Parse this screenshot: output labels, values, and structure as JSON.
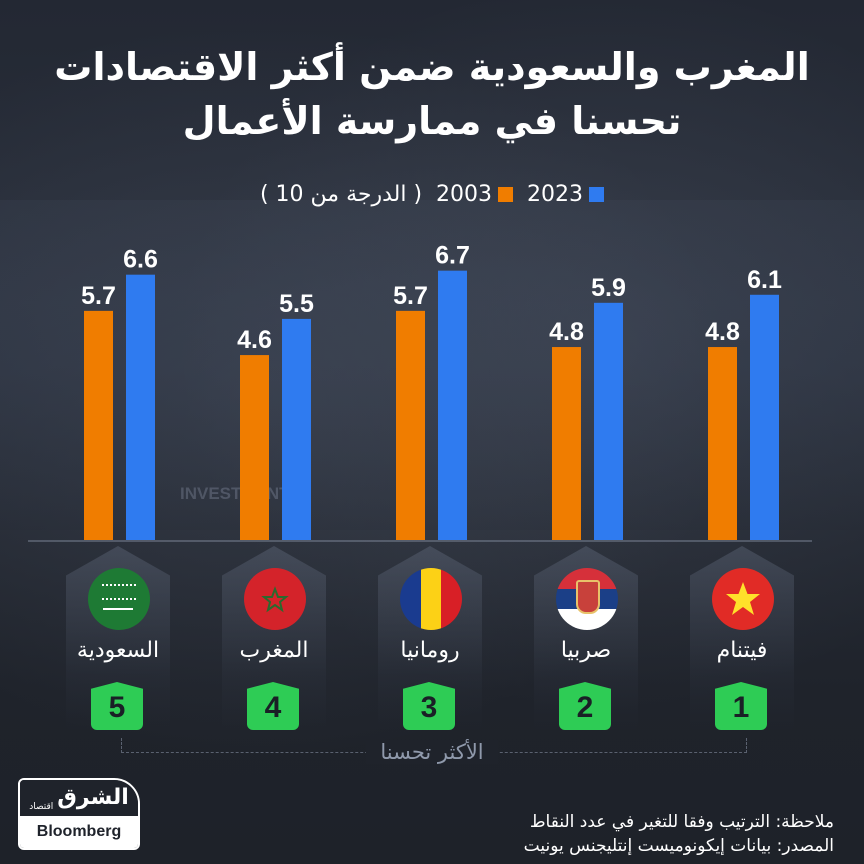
{
  "title": {
    "line1": "المغرب والسعودية ضمن أكثر الاقتصادات",
    "line2": "تحسنا في ممارسة الأعمال"
  },
  "legend": {
    "series_2023": "2023",
    "series_2003": "2003",
    "unit_note": "( الدرجة من 10 )"
  },
  "colors": {
    "series_2003": "#f07d00",
    "series_2023": "#2f7bf0",
    "rank_badge": "#2ecc55",
    "background": "#1f232b"
  },
  "chart_data": {
    "type": "bar",
    "title": "المغرب والسعودية ضمن أكثر الاقتصادات تحسنا في ممارسة الأعمال",
    "xlabel": "",
    "ylabel": "الدرجة من 10",
    "ylim": [
      0,
      10
    ],
    "grid": false,
    "legend_position": "top-center",
    "categories": [
      "السعودية",
      "المغرب",
      "رومانيا",
      "صربيا",
      "فيتنام"
    ],
    "ranks": [
      5,
      4,
      3,
      2,
      1
    ],
    "series": [
      {
        "name": "2003",
        "values": [
          5.7,
          4.6,
          5.7,
          4.8,
          4.8
        ]
      },
      {
        "name": "2023",
        "values": [
          6.6,
          5.5,
          6.7,
          5.9,
          6.1
        ]
      }
    ]
  },
  "countries": [
    {
      "name": "السعودية",
      "rank": "5",
      "flag": "saudi-arabia"
    },
    {
      "name": "المغرب",
      "rank": "4",
      "flag": "morocco"
    },
    {
      "name": "رومانيا",
      "rank": "3",
      "flag": "romania"
    },
    {
      "name": "صربيا",
      "rank": "2",
      "flag": "serbia"
    },
    {
      "name": "فيتنام",
      "rank": "1",
      "flag": "vietnam"
    }
  ],
  "bracket_label": "الأكثر تحسنا",
  "watermark": "INVESTMENT",
  "logo": {
    "arabic": "الشرق",
    "sub": "اقتصاد",
    "brand": "Bloomberg"
  },
  "notes": {
    "note": "ملاحظة: الترتيب وفقا للتغير في عدد النقاط",
    "source": "المصدر: بيانات إيكونوميست إنتليجنس يونيت"
  }
}
